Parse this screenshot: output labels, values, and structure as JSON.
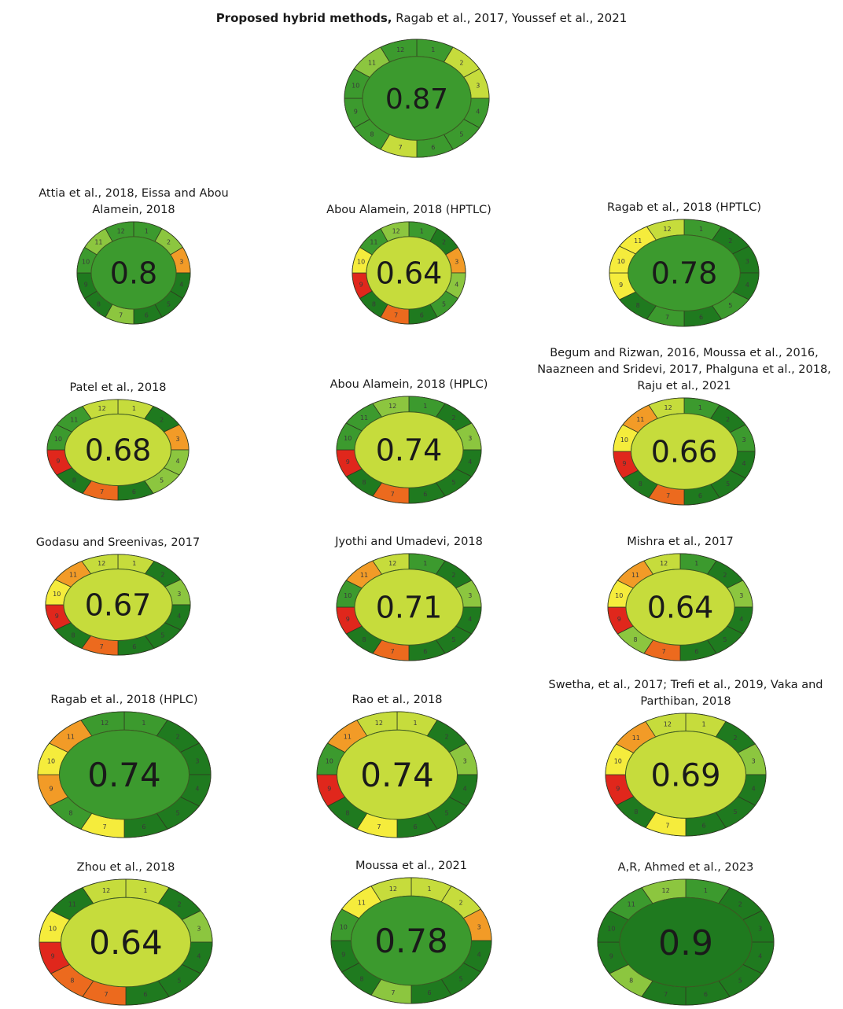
{
  "header": {
    "title_bold": "Proposed hybrid methods,",
    "title_rest": " Ragab et al., 2017, Youssef et al., 2021"
  },
  "palette": {
    "dark_green": "#1f7a1f",
    "green": "#3c9a2e",
    "light_green": "#8cc63f",
    "yellow_green": "#c6dc3c",
    "yellow": "#f5ec3c",
    "orange": "#f29b27",
    "deep_orange": "#ec6a1e",
    "red": "#e0271c"
  },
  "diagrams": [
    {
      "id": "hybrid",
      "label": "",
      "score": "0.87",
      "center": "green",
      "segments": [
        "green",
        "yellow_green",
        "yellow_green",
        "green",
        "green",
        "green",
        "yellow_green",
        "green",
        "green",
        "green",
        "light_green",
        "green"
      ]
    },
    {
      "id": "attia",
      "label": "Attia et al., 2018, Eissa and Abou Alamein, 2018",
      "score": "0.8",
      "center": "green",
      "segments": [
        "green",
        "light_green",
        "orange",
        "dark_green",
        "dark_green",
        "dark_green",
        "light_green",
        "dark_green",
        "dark_green",
        "green",
        "light_green",
        "green"
      ]
    },
    {
      "id": "abou-hptlc",
      "label": "Abou Alamein, 2018 (HPTLC)",
      "score": "0.64",
      "center": "yellow_green",
      "segments": [
        "green",
        "dark_green",
        "orange",
        "light_green",
        "green",
        "dark_green",
        "deep_orange",
        "dark_green",
        "red",
        "yellow",
        "green",
        "light_green"
      ]
    },
    {
      "id": "ragab-hptlc",
      "label": "Ragab et al., 2018 (HPTLC)",
      "score": "0.78",
      "center": "green",
      "segments": [
        "green",
        "dark_green",
        "dark_green",
        "dark_green",
        "green",
        "dark_green",
        "green",
        "dark_green",
        "yellow",
        "yellow",
        "yellow",
        "yellow_green"
      ]
    },
    {
      "id": "patel",
      "label": "Patel et al., 2018",
      "score": "0.68",
      "center": "yellow_green",
      "segments": [
        "yellow_green",
        "dark_green",
        "orange",
        "light_green",
        "light_green",
        "dark_green",
        "deep_orange",
        "dark_green",
        "red",
        "green",
        "green",
        "yellow_green"
      ]
    },
    {
      "id": "abou-hplc",
      "label": "Abou Alamein, 2018 (HPLC)",
      "score": "0.74",
      "center": "yellow_green",
      "segments": [
        "green",
        "dark_green",
        "light_green",
        "dark_green",
        "dark_green",
        "dark_green",
        "deep_orange",
        "dark_green",
        "red",
        "green",
        "green",
        "light_green"
      ]
    },
    {
      "id": "begum",
      "label": "Begum and Rizwan, 2016, Moussa et al., 2016, Naazneen and Sridevi, 2017, Phalguna et al., 2018, Raju et al., 2021",
      "score": "0.66",
      "center": "yellow_green",
      "segments": [
        "green",
        "dark_green",
        "green",
        "dark_green",
        "dark_green",
        "dark_green",
        "deep_orange",
        "dark_green",
        "red",
        "yellow",
        "orange",
        "yellow_green"
      ]
    },
    {
      "id": "godasu",
      "label": "Godasu and Sreenivas, 2017",
      "score": "0.67",
      "center": "yellow_green",
      "segments": [
        "yellow_green",
        "dark_green",
        "light_green",
        "dark_green",
        "dark_green",
        "dark_green",
        "deep_orange",
        "dark_green",
        "red",
        "yellow",
        "orange",
        "yellow_green"
      ]
    },
    {
      "id": "jyothi",
      "label": "Jyothi and Umadevi, 2018",
      "score": "0.71",
      "center": "yellow_green",
      "segments": [
        "green",
        "dark_green",
        "light_green",
        "dark_green",
        "dark_green",
        "dark_green",
        "deep_orange",
        "dark_green",
        "red",
        "green",
        "orange",
        "yellow_green"
      ]
    },
    {
      "id": "mishra",
      "label": "Mishra et al., 2017",
      "score": "0.64",
      "center": "yellow_green",
      "segments": [
        "green",
        "dark_green",
        "light_green",
        "dark_green",
        "dark_green",
        "dark_green",
        "deep_orange",
        "light_green",
        "red",
        "yellow",
        "orange",
        "yellow_green"
      ]
    },
    {
      "id": "ragab-hplc",
      "label": "Ragab et al., 2018 (HPLC)",
      "score": "0.74",
      "center": "green",
      "segments": [
        "green",
        "dark_green",
        "dark_green",
        "dark_green",
        "dark_green",
        "dark_green",
        "yellow",
        "green",
        "orange",
        "yellow",
        "orange",
        "green"
      ]
    },
    {
      "id": "rao",
      "label": "Rao et al., 2018",
      "score": "0.74",
      "center": "yellow_green",
      "segments": [
        "yellow_green",
        "dark_green",
        "light_green",
        "dark_green",
        "dark_green",
        "dark_green",
        "yellow",
        "dark_green",
        "red",
        "green",
        "orange",
        "yellow_green"
      ]
    },
    {
      "id": "swetha",
      "label": "Swetha, et al., 2017; Trefi et al., 2019, Vaka and Parthiban, 2018",
      "score": "0.69",
      "center": "yellow_green",
      "segments": [
        "yellow_green",
        "dark_green",
        "light_green",
        "dark_green",
        "dark_green",
        "dark_green",
        "yellow",
        "dark_green",
        "red",
        "yellow",
        "orange",
        "yellow_green"
      ]
    },
    {
      "id": "zhou",
      "label": "Zhou et al., 2018",
      "score": "0.64",
      "center": "yellow_green",
      "segments": [
        "yellow_green",
        "dark_green",
        "light_green",
        "dark_green",
        "dark_green",
        "dark_green",
        "deep_orange",
        "deep_orange",
        "red",
        "yellow",
        "dark_green",
        "yellow_green"
      ]
    },
    {
      "id": "moussa-2021",
      "label": "Moussa et al., 2021",
      "score": "0.78",
      "center": "green",
      "segments": [
        "yellow_green",
        "yellow_green",
        "orange",
        "dark_green",
        "dark_green",
        "dark_green",
        "light_green",
        "dark_green",
        "dark_green",
        "green",
        "yellow",
        "yellow_green"
      ]
    },
    {
      "id": "ahmed",
      "label": "A,R, Ahmed et al., 2023",
      "score": "0.9",
      "center": "dark_green",
      "segments": [
        "green",
        "dark_green",
        "dark_green",
        "dark_green",
        "dark_green",
        "dark_green",
        "dark_green",
        "light_green",
        "dark_green",
        "dark_green",
        "green",
        "light_green"
      ]
    }
  ]
}
